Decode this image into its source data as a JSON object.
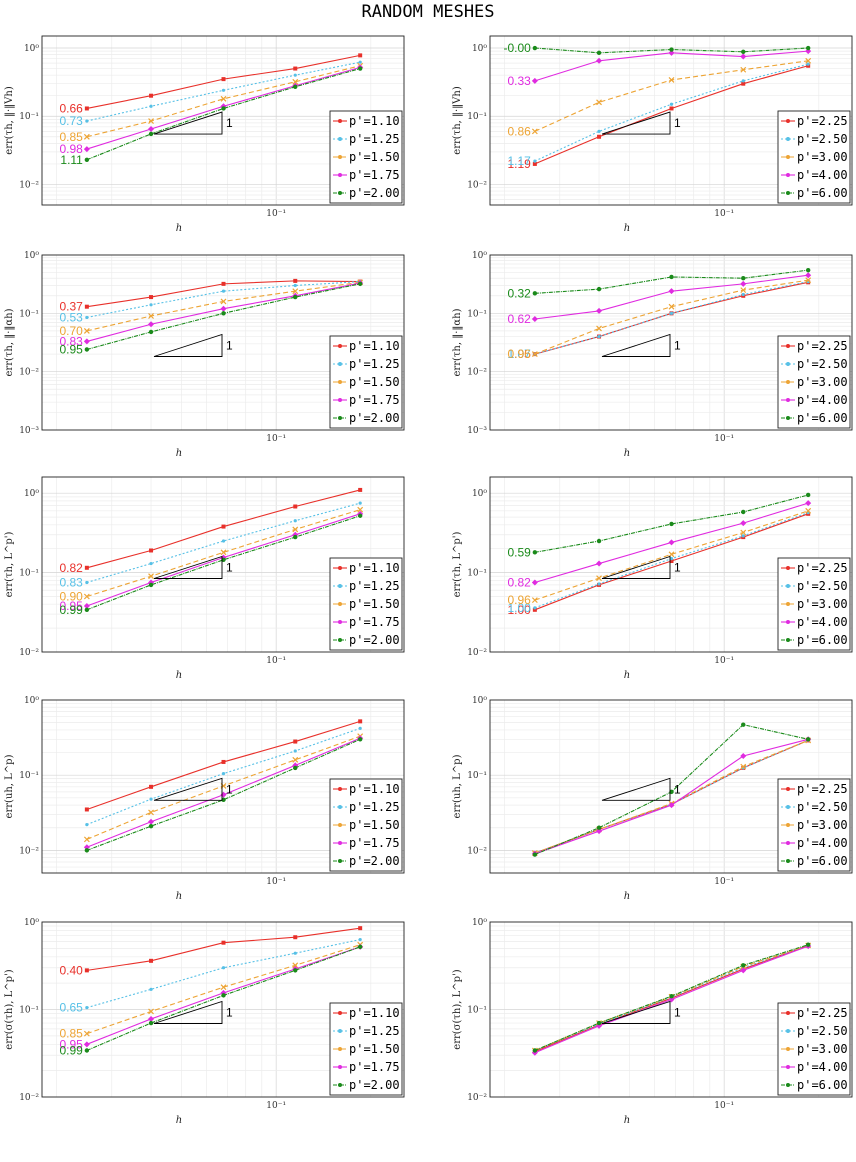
{
  "title": "RANDOM MESHES",
  "colors": [
    "#e8302a",
    "#56c0e6",
    "#eda434",
    "#e02be0",
    "#1a8a1a"
  ],
  "markers": [
    "square",
    "dot",
    "x",
    "diamond",
    "circle"
  ],
  "dashes": [
    "",
    "2,2",
    "5,3",
    "",
    "4,1,1,1"
  ],
  "x_tick_label": "10⁻¹",
  "x_label": "h",
  "triangle_label": "1",
  "chart_data": [
    {
      "type": "line",
      "log_x": true,
      "log_y": true,
      "grid": true,
      "legend": "bottom-right",
      "xlabel": "h",
      "ylabel": "err(τh, ‖·‖Vh)",
      "x": [
        0.025,
        0.04,
        0.068,
        0.115,
        0.185
      ],
      "ylim": [
        0.005,
        1.5
      ],
      "yticks": [
        0.01,
        0.1,
        1
      ],
      "ytick_labels": [
        "10⁻²",
        "10⁻¹",
        "10⁰"
      ],
      "series": [
        {
          "name": "p'=1.10",
          "values": [
            0.13,
            0.2,
            0.35,
            0.5,
            0.78
          ],
          "slope": "0.66"
        },
        {
          "name": "p'=1.25",
          "values": [
            0.085,
            0.14,
            0.24,
            0.4,
            0.62
          ],
          "slope": "0.73"
        },
        {
          "name": "p'=1.50",
          "values": [
            0.05,
            0.085,
            0.18,
            0.32,
            0.55
          ],
          "slope": "0.85"
        },
        {
          "name": "p'=1.75",
          "values": [
            0.033,
            0.065,
            0.14,
            0.28,
            0.52
          ],
          "slope": "0.98"
        },
        {
          "name": "p'=2.00",
          "values": [
            0.023,
            0.055,
            0.13,
            0.27,
            0.5
          ],
          "slope": "1.11"
        }
      ]
    },
    {
      "type": "line",
      "log_x": true,
      "log_y": true,
      "grid": true,
      "legend": "bottom-right",
      "xlabel": "h",
      "ylabel": "err(τh, ‖·‖Vh)",
      "x": [
        0.025,
        0.04,
        0.068,
        0.115,
        0.185
      ],
      "ylim": [
        0.005,
        1.5
      ],
      "yticks": [
        0.01,
        0.1,
        1
      ],
      "ytick_labels": [
        "10⁻²",
        "10⁻¹",
        "10⁰"
      ],
      "series": [
        {
          "name": "p'=2.25",
          "values": [
            0.02,
            0.05,
            0.13,
            0.3,
            0.55
          ],
          "slope": "1.19"
        },
        {
          "name": "p'=2.50",
          "values": [
            0.022,
            0.06,
            0.15,
            0.33,
            0.58
          ],
          "slope": "1.17"
        },
        {
          "name": "p'=3.00",
          "values": [
            0.06,
            0.16,
            0.34,
            0.48,
            0.65
          ],
          "slope": "0.86"
        },
        {
          "name": "p'=4.00",
          "values": [
            0.33,
            0.65,
            0.85,
            0.75,
            0.9
          ],
          "slope": "0.33"
        },
        {
          "name": "p'=6.00",
          "values": [
            1.0,
            0.85,
            0.95,
            0.88,
            1.0
          ],
          "slope": "-0.00"
        }
      ]
    },
    {
      "type": "line",
      "log_x": true,
      "log_y": true,
      "grid": true,
      "legend": "bottom-right",
      "xlabel": "h",
      "ylabel": "err(τh, ‖·‖αh)",
      "x": [
        0.025,
        0.04,
        0.068,
        0.115,
        0.185
      ],
      "ylim": [
        0.001,
        1.0
      ],
      "yticks": [
        0.001,
        0.01,
        0.1,
        1
      ],
      "ytick_labels": [
        "10⁻³",
        "10⁻²",
        "10⁻¹",
        "10⁰"
      ],
      "series": [
        {
          "name": "p'=1.10",
          "values": [
            0.13,
            0.19,
            0.32,
            0.36,
            0.35
          ],
          "slope": "0.37"
        },
        {
          "name": "p'=1.25",
          "values": [
            0.085,
            0.14,
            0.24,
            0.3,
            0.35
          ],
          "slope": "0.53"
        },
        {
          "name": "p'=1.50",
          "values": [
            0.05,
            0.09,
            0.16,
            0.24,
            0.34
          ],
          "slope": "0.70"
        },
        {
          "name": "p'=1.75",
          "values": [
            0.033,
            0.065,
            0.12,
            0.2,
            0.33
          ],
          "slope": "0.83"
        },
        {
          "name": "p'=2.00",
          "values": [
            0.024,
            0.048,
            0.1,
            0.19,
            0.32
          ],
          "slope": "0.95"
        }
      ]
    },
    {
      "type": "line",
      "log_x": true,
      "log_y": true,
      "grid": true,
      "legend": "bottom-right",
      "xlabel": "h",
      "ylabel": "err(τh, ‖·‖αh)",
      "x": [
        0.025,
        0.04,
        0.068,
        0.115,
        0.185
      ],
      "ylim": [
        0.001,
        1.0
      ],
      "yticks": [
        0.001,
        0.01,
        0.1,
        1
      ],
      "ytick_labels": [
        "10⁻³",
        "10⁻²",
        "10⁻¹",
        "10⁰"
      ],
      "series": [
        {
          "name": "p'=2.25",
          "values": [
            0.02,
            0.04,
            0.1,
            0.2,
            0.34
          ],
          "slope": "1.05"
        },
        {
          "name": "p'=2.50",
          "values": [
            0.02,
            0.04,
            0.1,
            0.21,
            0.35
          ],
          "slope": "1.07"
        },
        {
          "name": "p'=3.00",
          "values": [
            0.02,
            0.055,
            0.13,
            0.25,
            0.37
          ],
          "slope": "0.96"
        },
        {
          "name": "p'=4.00",
          "values": [
            0.08,
            0.11,
            0.24,
            0.32,
            0.45
          ],
          "slope": "0.62"
        },
        {
          "name": "p'=6.00",
          "values": [
            0.22,
            0.26,
            0.42,
            0.4,
            0.55
          ],
          "slope": "0.32"
        }
      ]
    },
    {
      "type": "line",
      "log_x": true,
      "log_y": true,
      "grid": true,
      "legend": "bottom-right",
      "xlabel": "h",
      "ylabel": "err(τh, L^p')",
      "x": [
        0.025,
        0.04,
        0.068,
        0.115,
        0.185
      ],
      "ylim": [
        0.01,
        1.6
      ],
      "yticks": [
        0.01,
        0.1,
        1
      ],
      "ytick_labels": [
        "10⁻²",
        "10⁻¹",
        "10⁰"
      ],
      "series": [
        {
          "name": "p'=1.10",
          "values": [
            0.115,
            0.19,
            0.38,
            0.68,
            1.1
          ],
          "slope": "0.82"
        },
        {
          "name": "p'=1.25",
          "values": [
            0.075,
            0.13,
            0.25,
            0.45,
            0.75
          ],
          "slope": "0.83"
        },
        {
          "name": "p'=1.50",
          "values": [
            0.05,
            0.09,
            0.18,
            0.35,
            0.62
          ],
          "slope": "0.90"
        },
        {
          "name": "p'=1.75",
          "values": [
            0.038,
            0.075,
            0.155,
            0.3,
            0.55
          ],
          "slope": "0.95"
        },
        {
          "name": "p'=2.00",
          "values": [
            0.034,
            0.07,
            0.145,
            0.28,
            0.52
          ],
          "slope": "0.99"
        }
      ]
    },
    {
      "type": "line",
      "log_x": true,
      "log_y": true,
      "grid": true,
      "legend": "bottom-right",
      "xlabel": "h",
      "ylabel": "err(τh, L^p')",
      "x": [
        0.025,
        0.04,
        0.068,
        0.115,
        0.185
      ],
      "ylim": [
        0.01,
        1.6
      ],
      "yticks": [
        0.01,
        0.1,
        1
      ],
      "ytick_labels": [
        "10⁻²",
        "10⁻¹",
        "10⁰"
      ],
      "series": [
        {
          "name": "p'=2.25",
          "values": [
            0.034,
            0.07,
            0.14,
            0.28,
            0.55
          ],
          "slope": "1.00"
        },
        {
          "name": "p'=2.50",
          "values": [
            0.036,
            0.072,
            0.15,
            0.29,
            0.57
          ],
          "slope": "1.00"
        },
        {
          "name": "p'=3.00",
          "values": [
            0.045,
            0.085,
            0.17,
            0.32,
            0.6
          ],
          "slope": "0.96"
        },
        {
          "name": "p'=4.00",
          "values": [
            0.075,
            0.13,
            0.24,
            0.42,
            0.75
          ],
          "slope": "0.82"
        },
        {
          "name": "p'=6.00",
          "values": [
            0.18,
            0.25,
            0.41,
            0.58,
            0.95
          ],
          "slope": "0.59"
        }
      ]
    },
    {
      "type": "line",
      "log_x": true,
      "log_y": true,
      "grid": true,
      "legend": "bottom-right",
      "xlabel": "h",
      "ylabel": "err(uh, L^p)",
      "x": [
        0.025,
        0.04,
        0.068,
        0.115,
        0.185
      ],
      "ylim": [
        0.005,
        1.0
      ],
      "yticks": [
        0.01,
        0.1,
        1
      ],
      "ytick_labels": [
        "10⁻²",
        "10⁻¹",
        "10⁰"
      ],
      "series": [
        {
          "name": "p'=1.10",
          "values": [
            0.035,
            0.07,
            0.15,
            0.28,
            0.52
          ],
          "slope": ""
        },
        {
          "name": "p'=1.25",
          "values": [
            0.022,
            0.048,
            0.105,
            0.21,
            0.42
          ],
          "slope": ""
        },
        {
          "name": "p'=1.50",
          "values": [
            0.014,
            0.032,
            0.072,
            0.16,
            0.33
          ],
          "slope": ""
        },
        {
          "name": "p'=1.75",
          "values": [
            0.011,
            0.024,
            0.055,
            0.135,
            0.31
          ],
          "slope": ""
        },
        {
          "name": "p'=2.00",
          "values": [
            0.01,
            0.021,
            0.047,
            0.125,
            0.3
          ],
          "slope": ""
        }
      ]
    },
    {
      "type": "line",
      "log_x": true,
      "log_y": true,
      "grid": true,
      "legend": "bottom-right",
      "xlabel": "h",
      "ylabel": "err(uh, L^p)",
      "x": [
        0.025,
        0.04,
        0.068,
        0.115,
        0.185
      ],
      "ylim": [
        0.005,
        1.0
      ],
      "yticks": [
        0.01,
        0.1,
        1
      ],
      "ytick_labels": [
        "10⁻²",
        "10⁻¹",
        "10⁰"
      ],
      "series": [
        {
          "name": "p'=2.25",
          "values": [
            0.0092,
            0.019,
            0.041,
            0.125,
            0.29
          ],
          "slope": ""
        },
        {
          "name": "p'=2.50",
          "values": [
            0.0092,
            0.019,
            0.041,
            0.125,
            0.29
          ],
          "slope": ""
        },
        {
          "name": "p'=3.00",
          "values": [
            0.0092,
            0.019,
            0.042,
            0.13,
            0.29
          ],
          "slope": ""
        },
        {
          "name": "p'=4.00",
          "values": [
            0.009,
            0.018,
            0.04,
            0.18,
            0.3
          ],
          "slope": ""
        },
        {
          "name": "p'=6.00",
          "values": [
            0.0088,
            0.02,
            0.06,
            0.47,
            0.3
          ],
          "slope": ""
        }
      ]
    },
    {
      "type": "line",
      "log_x": true,
      "log_y": true,
      "grid": true,
      "legend": "bottom-right",
      "xlabel": "h",
      "ylabel": "err(σ(τh), L^p')",
      "x": [
        0.025,
        0.04,
        0.068,
        0.115,
        0.185
      ],
      "ylim": [
        0.01,
        1.0
      ],
      "yticks": [
        0.01,
        0.1,
        1
      ],
      "ytick_labels": [
        "10⁻²",
        "10⁻¹",
        "10⁰"
      ],
      "series": [
        {
          "name": "p'=1.10",
          "values": [
            0.28,
            0.36,
            0.58,
            0.67,
            0.85
          ],
          "slope": "0.40"
        },
        {
          "name": "p'=1.25",
          "values": [
            0.105,
            0.17,
            0.3,
            0.44,
            0.63
          ],
          "slope": "0.65"
        },
        {
          "name": "p'=1.50",
          "values": [
            0.053,
            0.095,
            0.18,
            0.32,
            0.55
          ],
          "slope": "0.85"
        },
        {
          "name": "p'=1.75",
          "values": [
            0.04,
            0.078,
            0.155,
            0.29,
            0.52
          ],
          "slope": "0.95"
        },
        {
          "name": "p'=2.00",
          "values": [
            0.034,
            0.07,
            0.145,
            0.28,
            0.52
          ],
          "slope": "0.99"
        }
      ]
    },
    {
      "type": "line",
      "log_x": true,
      "log_y": true,
      "grid": true,
      "legend": "bottom-right",
      "xlabel": "h",
      "ylabel": "err(σ(τh), L^p')",
      "x": [
        0.025,
        0.04,
        0.068,
        0.115,
        0.185
      ],
      "ylim": [
        0.01,
        1.0
      ],
      "yticks": [
        0.01,
        0.1,
        1
      ],
      "ytick_labels": [
        "10⁻²",
        "10⁻¹",
        "10⁰"
      ],
      "series": [
        {
          "name": "p'=2.25",
          "values": [
            0.033,
            0.067,
            0.135,
            0.29,
            0.54
          ],
          "slope": ""
        },
        {
          "name": "p'=2.50",
          "values": [
            0.034,
            0.068,
            0.138,
            0.3,
            0.54
          ],
          "slope": ""
        },
        {
          "name": "p'=3.00",
          "values": [
            0.034,
            0.07,
            0.14,
            0.31,
            0.54
          ],
          "slope": ""
        },
        {
          "name": "p'=4.00",
          "values": [
            0.032,
            0.065,
            0.13,
            0.28,
            0.53
          ],
          "slope": ""
        },
        {
          "name": "p'=6.00",
          "values": [
            0.034,
            0.07,
            0.142,
            0.32,
            0.55
          ],
          "slope": ""
        }
      ]
    }
  ]
}
